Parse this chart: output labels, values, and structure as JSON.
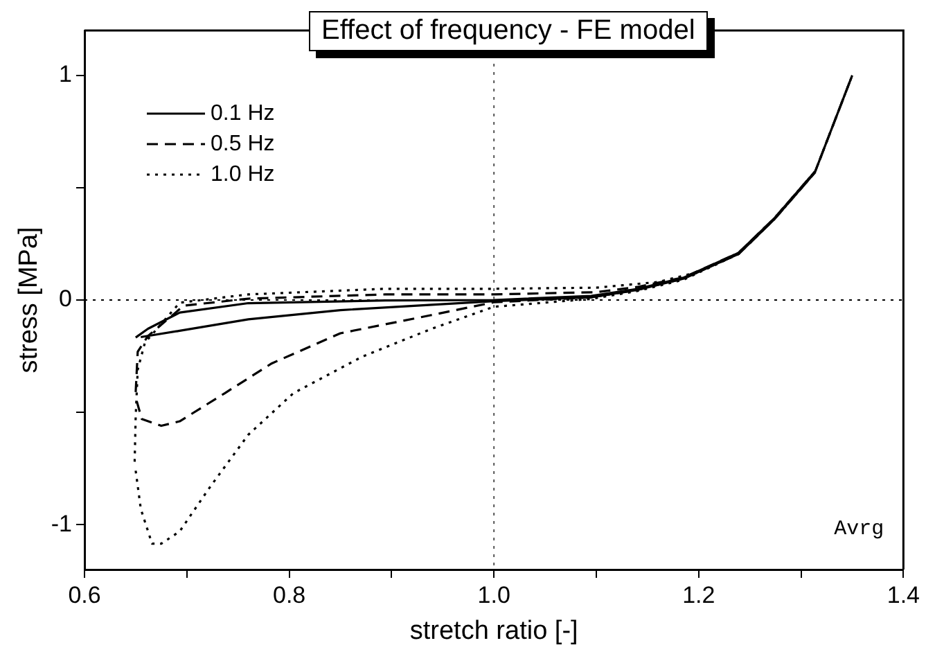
{
  "chart_data": {
    "type": "line",
    "title": "Effect of frequency - FE model",
    "xlabel": "stretch ratio [-]",
    "ylabel": "stress [MPa]",
    "xlim": [
      0.6,
      1.4
    ],
    "xticks": [
      0.6,
      {
        "value": 0.7,
        "label": null
      },
      0.8,
      {
        "value": 0.9,
        "label": null
      },
      "1.0",
      {
        "value": 1.1,
        "label": null
      },
      1.2,
      {
        "value": 1.3,
        "label": null
      },
      1.4
    ],
    "ylim": [
      -1.2,
      1.2
    ],
    "yticks": [
      -1,
      {
        "value": -0.5,
        "label": null
      },
      0,
      {
        "value": 0.5,
        "label": null
      },
      1
    ],
    "grid": false,
    "legend": "top left",
    "marker": "none",
    "ref_lines": [
      {
        "axis": "x",
        "value": 1.0,
        "color": "#555555",
        "line_style": "dotted"
      },
      {
        "axis": "y",
        "value": 0,
        "color": "#000000",
        "line_style": "dotted"
      }
    ],
    "annotations": [
      "Avrg"
    ],
    "series": [
      {
        "name": "0.1 Hz",
        "color": "#000000",
        "line_style": "solid",
        "x": [
          0.65,
          0.662,
          0.693,
          0.76,
          0.894,
          1.0,
          1.095,
          1.14,
          1.185,
          1.239,
          1.274,
          1.314,
          1.35
        ],
        "values": [
          -0.167,
          -0.128,
          -0.056,
          -0.014,
          -0.002,
          0.0,
          0.018,
          0.049,
          0.099,
          0.21,
          0.364,
          0.574,
          1.0
        ]
      },
      {
        "name": "0.5 Hz",
        "color": "#000000",
        "line_style": "dashed",
        "x": [
          0.65,
          0.652,
          0.662,
          0.697,
          0.76,
          0.894,
          1.0,
          1.1,
          1.14,
          1.185,
          1.239,
          1.274,
          1.314,
          1.35
        ],
        "values": [
          -0.41,
          -0.23,
          -0.16,
          -0.025,
          0.006,
          0.025,
          0.025,
          0.035,
          0.058,
          0.1,
          0.21,
          0.364,
          0.574,
          1.0
        ]
      },
      {
        "name": "1.0 Hz",
        "color": "#000000",
        "line_style": "dotted",
        "x": [
          0.649,
          0.65,
          0.652,
          0.659,
          0.693,
          0.76,
          0.894,
          1.0,
          1.1,
          1.16,
          1.2,
          1.239,
          1.274,
          1.314,
          1.35
        ],
        "values": [
          -0.72,
          -0.52,
          -0.31,
          -0.19,
          -0.012,
          0.025,
          0.05,
          0.05,
          0.055,
          0.08,
          0.125,
          0.21,
          0.364,
          0.574,
          1.0
        ]
      },
      {
        "color": "#000000",
        "line_style": "solid",
        "x": [
          0.655,
          0.693,
          0.76,
          0.85,
          1.0,
          1.095,
          1.14,
          1.185,
          1.239,
          1.274,
          1.314
        ],
        "values": [
          -0.165,
          -0.137,
          -0.086,
          -0.045,
          -0.005,
          0.012,
          0.045,
          0.095,
          0.205,
          0.36,
          0.57
        ]
      },
      {
        "color": "#000000",
        "line_style": "dashed",
        "x": [
          0.651,
          0.656,
          0.675,
          0.693,
          0.737,
          0.783,
          0.85,
          0.938,
          1.0,
          1.095,
          1.14,
          1.185,
          1.239,
          1.274,
          1.314
        ],
        "values": [
          -0.45,
          -0.53,
          -0.56,
          -0.54,
          -0.415,
          -0.282,
          -0.148,
          -0.068,
          -0.01,
          0.012,
          0.045,
          0.095,
          0.205,
          0.36,
          0.57
        ]
      },
      {
        "color": "#000000",
        "line_style": "dotted",
        "x": [
          0.65,
          0.655,
          0.666,
          0.675,
          0.693,
          0.723,
          0.76,
          0.804,
          0.871,
          0.938,
          1.0,
          1.095,
          1.14,
          1.185,
          1.239,
          1.274,
          1.314
        ],
        "values": [
          -0.76,
          -0.93,
          -1.085,
          -1.085,
          -1.03,
          -0.83,
          -0.6,
          -0.415,
          -0.253,
          -0.13,
          -0.03,
          0.005,
          0.04,
          0.09,
          0.205,
          0.36,
          0.57
        ]
      }
    ]
  }
}
